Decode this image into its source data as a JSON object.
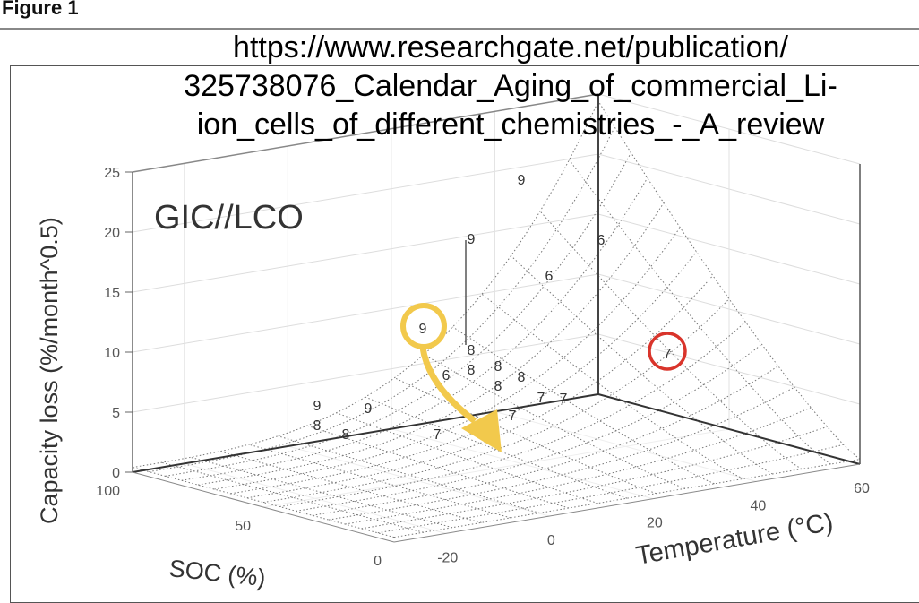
{
  "figure_label": "Figure 1",
  "source_url_lines": [
    "https://www.researchgate.net/publication/",
    "325738076_Calendar_Aging_of_commercial_Li-",
    "ion_cells_of_different_chemistries_-_A_review"
  ],
  "chart_data": {
    "type": "surface",
    "title": "GIC//LCO",
    "zlabel": "Capacity loss (%/month^0.5)",
    "xlabel": "Temperature (°C)",
    "ylabel": "SOC (%)",
    "zlim": [
      0,
      25
    ],
    "xlim": [
      -30,
      60
    ],
    "ylim": [
      0,
      100
    ],
    "z_ticks": [
      "0",
      "5",
      "10",
      "15",
      "20",
      "25"
    ],
    "x_ticks": [
      "-20",
      "0",
      "20",
      "40",
      "60"
    ],
    "y_ticks": [
      "0",
      "50",
      "100"
    ],
    "grid": true,
    "markers": [
      "9",
      "9",
      "9",
      "6",
      "6",
      "9",
      "8",
      "8",
      "6",
      "8",
      "8",
      "7",
      "7",
      "7",
      "7",
      "9",
      "8",
      "8",
      "8",
      "7"
    ],
    "annotations": {
      "highlight_yellow_marker": "9",
      "highlight_red_marker": "7",
      "yellow_color": "#f2c94c",
      "red_color": "#d9342b"
    }
  }
}
